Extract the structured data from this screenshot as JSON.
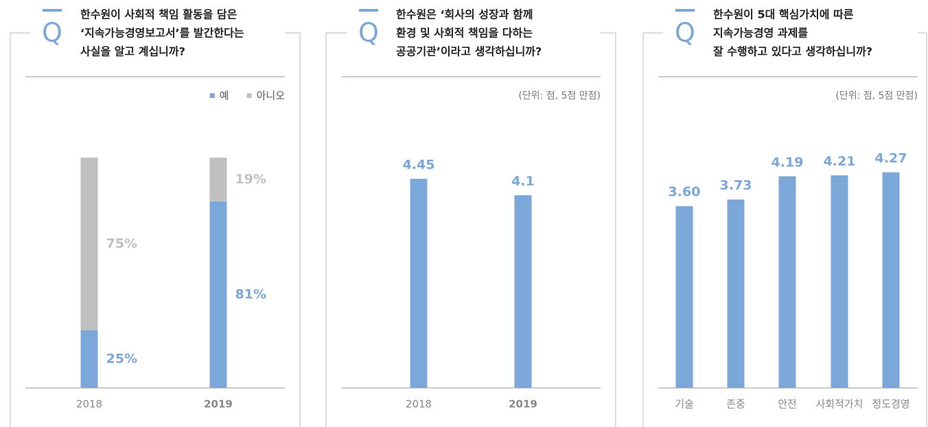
{
  "chart_data": [
    {
      "type": "stacked_bar",
      "icon": "Q",
      "title": [
        "한수원이 사회적 책임 활동을 담은",
        "‘지속가능경영보고서’를 발간한다는",
        "사실을 알고 계십니까?"
      ],
      "categories": [
        "2018",
        "2019"
      ],
      "highlight": 1,
      "series": [
        {
          "name": "예",
          "color": "#7ba7d9",
          "values": [
            25,
            81
          ],
          "value_labels": [
            "25%",
            "81%"
          ]
        },
        {
          "name": "아니오",
          "color": "#c0c0c0",
          "values": [
            75,
            19
          ],
          "value_labels": [
            "75%",
            "19%"
          ]
        }
      ],
      "ylim": [
        0,
        100
      ],
      "legend": "top-right"
    },
    {
      "type": "bar",
      "icon": "Q",
      "title": [
        "한수원은 ‘회사의 성장과 함께",
        "환경 및 사회적 책임을 다하는",
        "공공기관’이라고 생각하십니까?"
      ],
      "subtitle": "(단위: 점, 5점 만점)",
      "categories": [
        "2018",
        "2019"
      ],
      "highlight": 1,
      "values": [
        4.45,
        4.1
      ],
      "color": "#7ba7d9",
      "ylim": [
        0,
        4.9
      ]
    },
    {
      "type": "bar",
      "icon": "Q",
      "title": [
        "한수원이 5대 핵심가치에 따른",
        "지속가능경영 과제를",
        "잘 수행하고 있다고 생각하십니까?"
      ],
      "subtitle": "(단위: 점, 5점 만점)",
      "categories": [
        "기술",
        "존중",
        "안전",
        "사회적가치",
        "정도경영"
      ],
      "values": [
        3.6,
        3.73,
        4.19,
        4.21,
        4.27
      ],
      "value_labels": [
        "3.60",
        "3.73",
        "4.19",
        "4.21",
        "4.27"
      ],
      "color": "#7ba7d9",
      "ylim": [
        0,
        4.56
      ]
    }
  ]
}
